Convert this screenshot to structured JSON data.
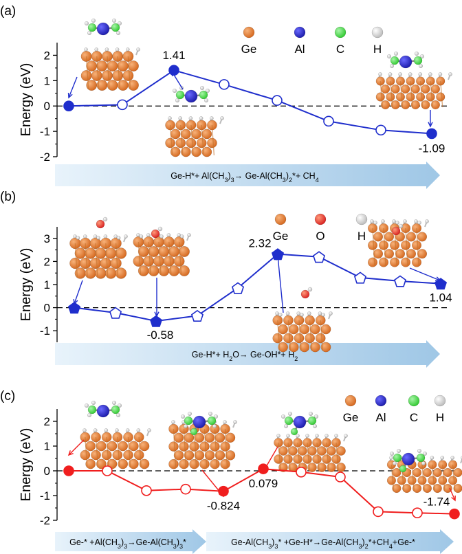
{
  "colors": {
    "blue": "#1f2ecc",
    "red": "#f01e1e",
    "ge": "#d4661c",
    "al": "#1a1aa8",
    "c": "#2ec82e",
    "h": "#b9b9b9",
    "o": "#d81e1e",
    "banner": "#bcd8ee"
  },
  "chart_data": [
    {
      "type": "line",
      "panel_label": "(a)",
      "ylabel": "Energy (eV)",
      "ylim": [
        -2,
        2.5
      ],
      "yticks": [
        "-2",
        "-1",
        "0",
        "1",
        "2"
      ],
      "marker": "circle",
      "color": "#1f2ecc",
      "x": [
        1,
        2,
        3,
        4,
        5,
        6,
        7,
        8
      ],
      "values": [
        0.0,
        0.05,
        1.41,
        0.85,
        0.22,
        -0.6,
        -0.95,
        -1.09
      ],
      "filled": [
        true,
        false,
        true,
        false,
        false,
        false,
        false,
        true
      ],
      "value_labels": [
        {
          "text": "1.41",
          "index": 2
        },
        {
          "text": "-1.09",
          "index": 7
        }
      ],
      "legend": [
        {
          "label": "Ge",
          "color": "#d4661c"
        },
        {
          "label": "Al",
          "color": "#1a1aa8"
        },
        {
          "label": "C",
          "color": "#2ec82e"
        },
        {
          "label": "H",
          "color": "#b9b9b9"
        }
      ],
      "banners": [
        {
          "segments": [
            "Ge-H*+ Al(CH",
            "3",
            ")",
            "3",
            "→ Ge-Al(CH",
            "3",
            ")",
            "2",
            "*+ CH",
            "4"
          ]
        }
      ]
    },
    {
      "type": "line",
      "panel_label": "(b)",
      "ylabel": "Energy (eV)",
      "ylim": [
        -1.5,
        3.5
      ],
      "yticks": [
        "-1",
        "0",
        "1",
        "2",
        "3"
      ],
      "marker": "pentagon",
      "color": "#1f2ecc",
      "x": [
        1,
        2,
        3,
        4,
        5,
        6,
        7,
        8,
        9,
        10
      ],
      "values": [
        0.0,
        -0.22,
        -0.58,
        -0.35,
        0.85,
        2.32,
        2.2,
        1.3,
        1.15,
        1.04
      ],
      "filled": [
        true,
        false,
        true,
        false,
        false,
        true,
        false,
        false,
        false,
        true
      ],
      "value_labels": [
        {
          "text": "2.32",
          "index": 5
        },
        {
          "text": "-0.58",
          "index": 2
        },
        {
          "text": "1.04",
          "index": 9
        }
      ],
      "legend": [
        {
          "label": "Ge",
          "color": "#d4661c"
        },
        {
          "label": "O",
          "color": "#d81e1e"
        },
        {
          "label": "H",
          "color": "#b9b9b9"
        }
      ],
      "banners": [
        {
          "segments": [
            "Ge-H*+ H",
            "2",
            "O→ Ge-OH*+ H",
            "2"
          ]
        }
      ]
    },
    {
      "type": "line",
      "panel_label": "(c)",
      "ylabel": "Energy (eV)",
      "ylim": [
        -2,
        2.5
      ],
      "yticks": [
        "-2",
        "-1",
        "0",
        "1",
        "2"
      ],
      "marker": "circle",
      "color": "#f01e1e",
      "x": [
        1,
        2,
        3,
        4,
        5,
        6,
        7,
        8,
        9,
        10,
        11
      ],
      "values": [
        0.0,
        0.0,
        -0.8,
        -0.74,
        -0.824,
        0.079,
        -0.05,
        -0.25,
        -1.65,
        -1.7,
        -1.74
      ],
      "filled": [
        true,
        false,
        false,
        false,
        true,
        true,
        false,
        false,
        false,
        false,
        true
      ],
      "value_labels": [
        {
          "text": "-0.824",
          "index": 4
        },
        {
          "text": "0.079",
          "index": 5
        },
        {
          "text": "-1.74",
          "index": 10
        }
      ],
      "legend": [
        {
          "label": "Ge",
          "color": "#d4661c"
        },
        {
          "label": "Al",
          "color": "#1a1aa8"
        },
        {
          "label": "C",
          "color": "#2ec82e"
        },
        {
          "label": "H",
          "color": "#b9b9b9"
        }
      ],
      "banners": [
        {
          "segments": [
            "Ge-* +Al(CH",
            "3",
            ")",
            "3",
            "→Ge-Al(CH",
            "3",
            ")",
            "3",
            "*"
          ]
        },
        {
          "segments": [
            "Ge-Al(CH",
            "3",
            ")",
            "3",
            "* +Ge-H*→Ge-Al(CH",
            "3",
            ")",
            "2",
            "*+CH",
            "4",
            "+Ge-*"
          ]
        }
      ]
    }
  ]
}
